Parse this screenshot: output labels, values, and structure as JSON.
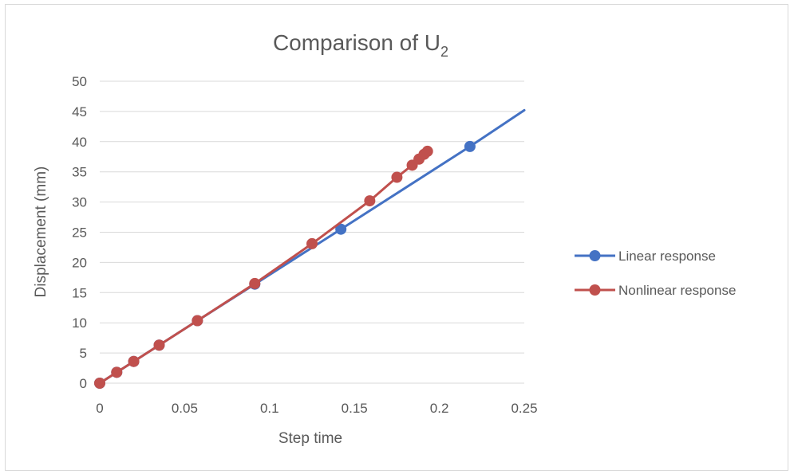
{
  "chart_data": {
    "type": "line",
    "title": "Comparison of U",
    "title_subscript": "2",
    "xlabel": "Step  time",
    "ylabel": "Displacement (mm)",
    "xlim": [
      0,
      0.25
    ],
    "ylim": [
      0,
      50
    ],
    "x_ticks": [
      "0",
      "0.05",
      "0.1",
      "0.15",
      "0.2",
      "0.25"
    ],
    "y_ticks": [
      "0",
      "5",
      "10",
      "15",
      "20",
      "25",
      "30",
      "35",
      "40",
      "45",
      "50"
    ],
    "grid": "horizontal",
    "legend_position": "right",
    "series": [
      {
        "name": "Linear response",
        "color": "#4472c4",
        "marker": "circle",
        "points": [
          [
            0,
            0
          ],
          [
            0.01,
            1.8
          ],
          [
            0.02,
            3.6
          ],
          [
            0.035,
            6.3
          ],
          [
            0.0575,
            10.35
          ],
          [
            0.0913,
            16.4
          ],
          [
            0.142,
            25.5
          ],
          [
            0.218,
            39.2
          ]
        ],
        "extends_to": [
          0.25,
          45.2
        ]
      },
      {
        "name": "Nonlinear response",
        "color": "#c0504d",
        "marker": "circle",
        "points": [
          [
            0,
            0
          ],
          [
            0.01,
            1.8
          ],
          [
            0.02,
            3.6
          ],
          [
            0.035,
            6.3
          ],
          [
            0.0575,
            10.35
          ],
          [
            0.0913,
            16.5
          ],
          [
            0.125,
            23.1
          ],
          [
            0.159,
            30.2
          ],
          [
            0.175,
            34.1
          ],
          [
            0.184,
            36.1
          ],
          [
            0.188,
            37.1
          ],
          [
            0.191,
            37.9
          ],
          [
            0.193,
            38.4
          ]
        ]
      }
    ]
  }
}
